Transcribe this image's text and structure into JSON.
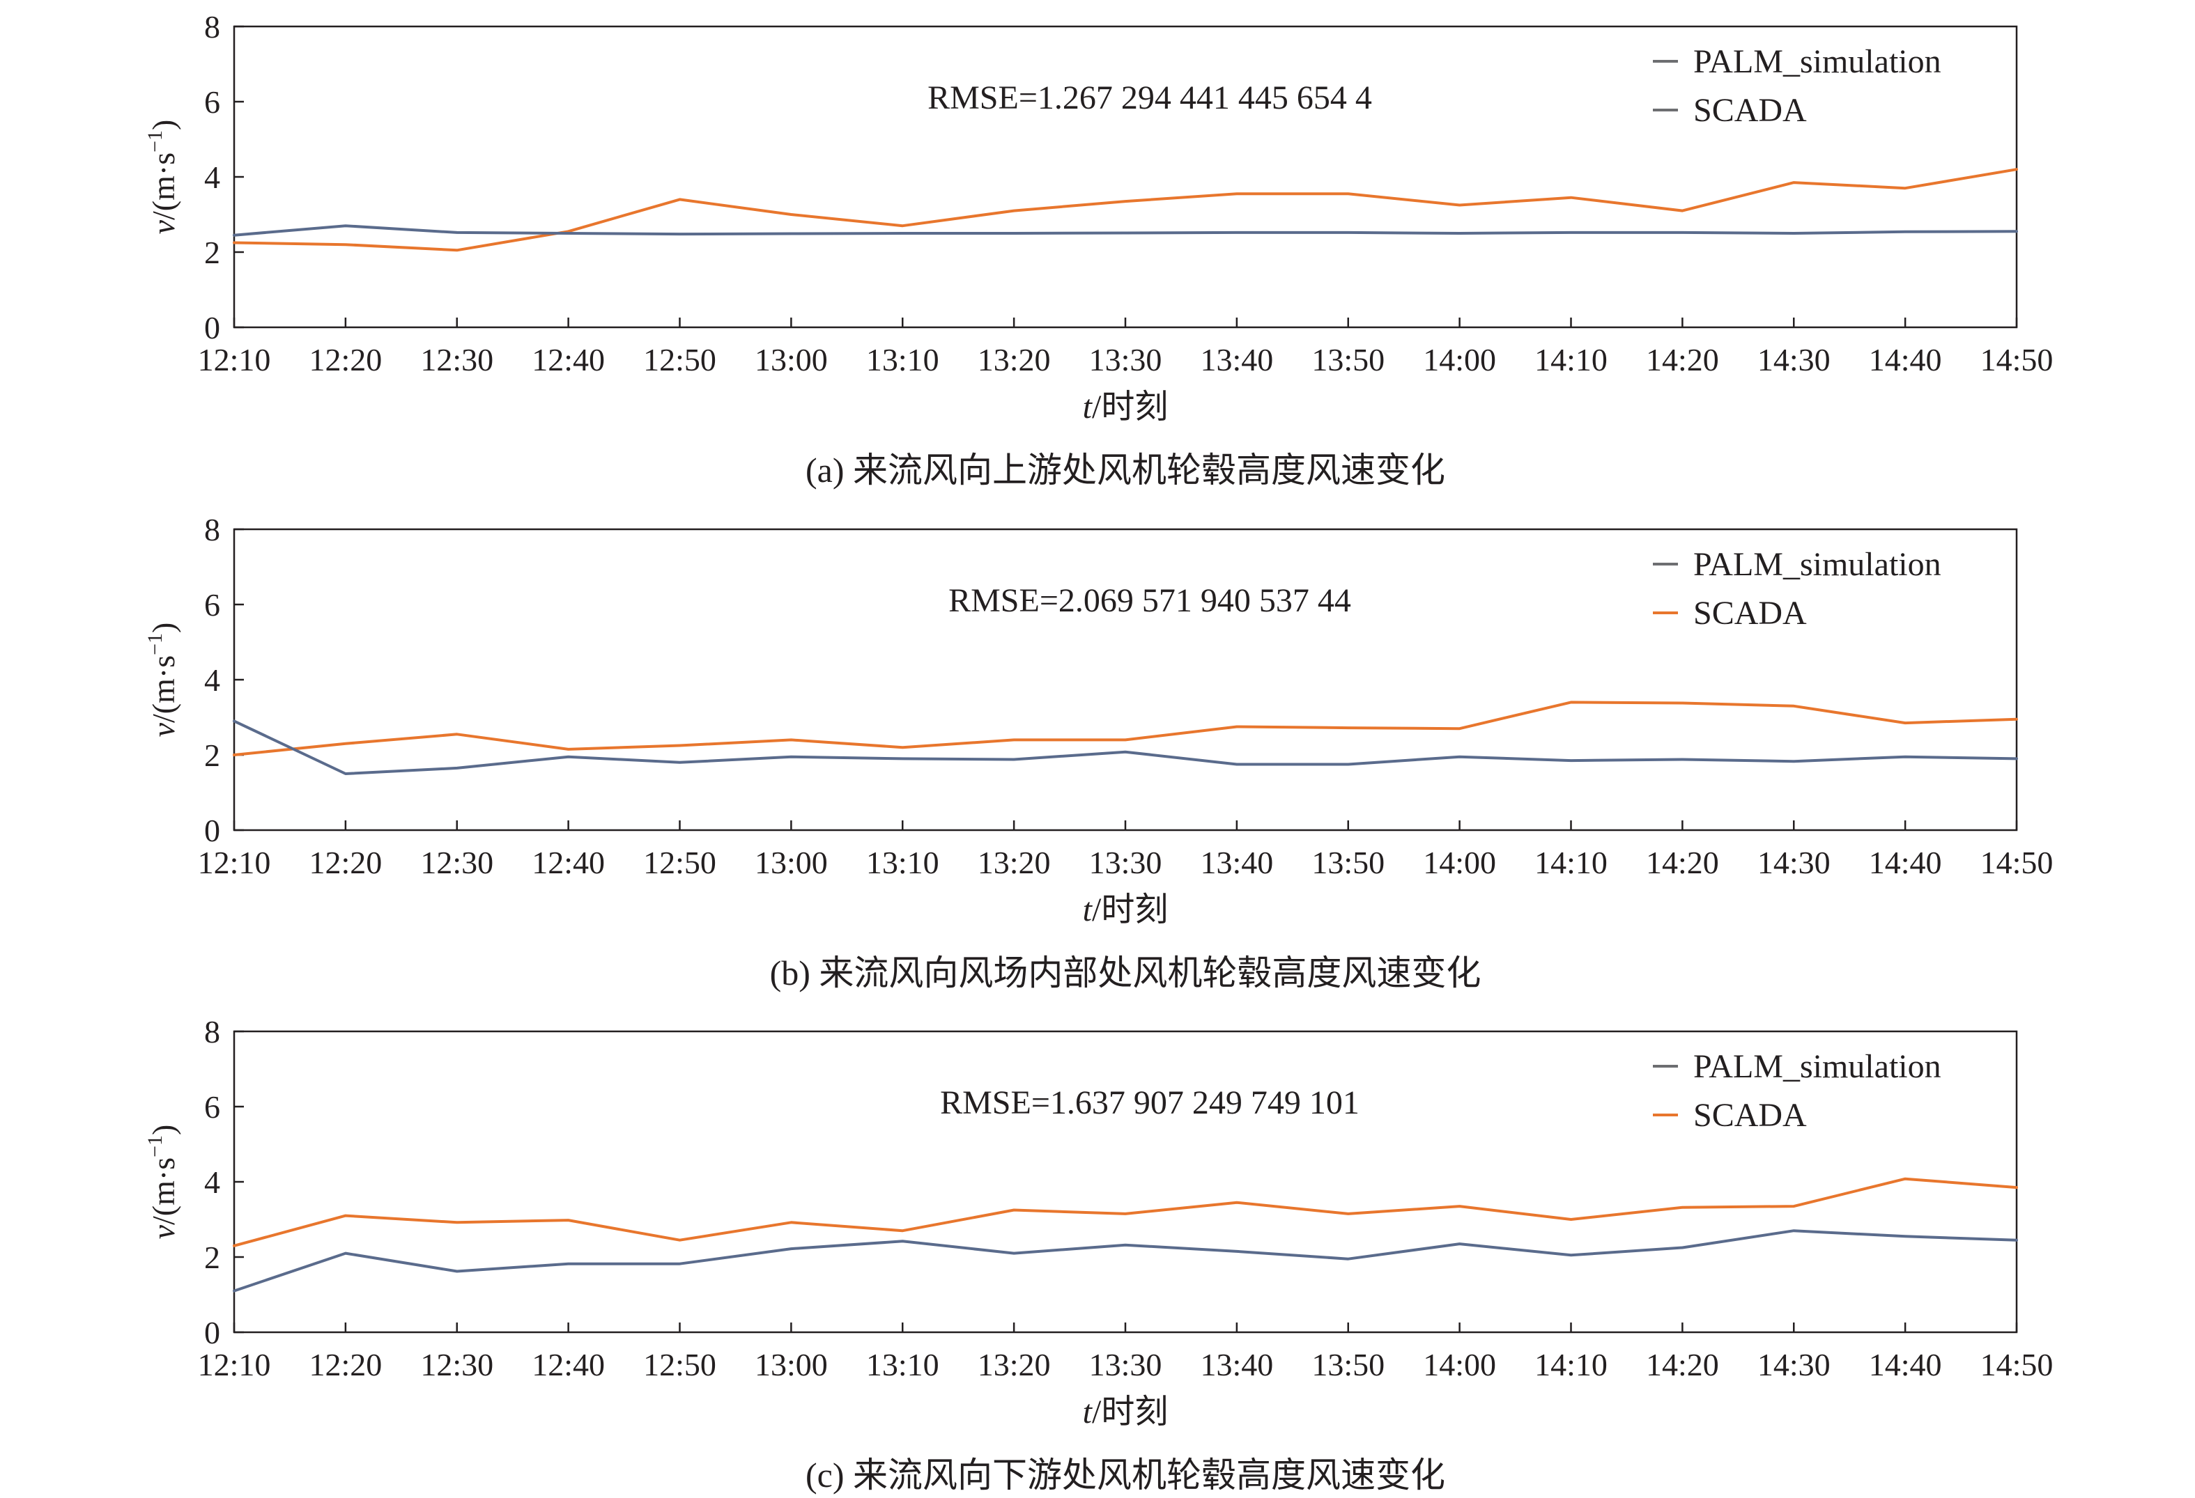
{
  "colors": {
    "palm": "#5a6b8c",
    "scada": "#e8762d",
    "legend_grey": "#6d6e71"
  },
  "chart_data": [
    {
      "type": "line",
      "panel": "a",
      "caption": "(a) 来流风向上游处风机轮毂高度风速变化",
      "annotation": "RMSE=1.267 294 441 445 654 4",
      "xlabel_italic": "t",
      "xlabel_rest": "/时刻",
      "ylabel_italic": "v",
      "ylabel_rest": "/(m·s",
      "ylabel_sup": "−1",
      "ylabel_close": ")",
      "ylim": [
        0,
        8
      ],
      "yticks": [
        "0",
        "2",
        "4",
        "6",
        "8"
      ],
      "categories": [
        "12:10",
        "12:20",
        "12:30",
        "12:40",
        "12:50",
        "13:00",
        "13:10",
        "13:20",
        "13:30",
        "13:40",
        "13:50",
        "14:00",
        "14:10",
        "14:20",
        "14:30",
        "14:40",
        "14:50"
      ],
      "legend_position": "top-right",
      "legend_marker_colors": [
        "#6d6e71",
        "#6d6e71"
      ],
      "series": [
        {
          "name": "PALM_simulation",
          "color": "#5a6b8c",
          "values": [
            2.45,
            2.7,
            2.52,
            2.5,
            2.48,
            2.49,
            2.5,
            2.5,
            2.51,
            2.52,
            2.52,
            2.5,
            2.52,
            2.52,
            2.5,
            2.54,
            2.55
          ]
        },
        {
          "name": "SCADA",
          "color": "#e8762d",
          "values": [
            2.25,
            2.2,
            2.05,
            2.55,
            3.4,
            3.0,
            2.7,
            3.1,
            3.35,
            3.55,
            3.55,
            3.25,
            3.45,
            3.1,
            3.85,
            3.7,
            4.2
          ]
        }
      ]
    },
    {
      "type": "line",
      "panel": "b",
      "caption": "(b) 来流风向风场内部处风机轮毂高度风速变化",
      "annotation": "RMSE=2.069 571 940 537 44",
      "xlabel_italic": "t",
      "xlabel_rest": "/时刻",
      "ylabel_italic": "v",
      "ylabel_rest": "/(m·s",
      "ylabel_sup": "−1",
      "ylabel_close": ")",
      "ylim": [
        0,
        8
      ],
      "yticks": [
        "0",
        "2",
        "4",
        "6",
        "8"
      ],
      "categories": [
        "12:10",
        "12:20",
        "12:30",
        "12:40",
        "12:50",
        "13:00",
        "13:10",
        "13:20",
        "13:30",
        "13:40",
        "13:50",
        "14:00",
        "14:10",
        "14:20",
        "14:30",
        "14:40",
        "14:50"
      ],
      "legend_position": "top-right",
      "legend_marker_colors": [
        "#6d6e71",
        "#e8762d"
      ],
      "series": [
        {
          "name": "PALM_simulation",
          "color": "#5a6b8c",
          "values": [
            2.9,
            1.5,
            1.65,
            1.95,
            1.8,
            1.95,
            1.9,
            1.88,
            2.08,
            1.75,
            1.75,
            1.95,
            1.85,
            1.88,
            1.83,
            1.95,
            1.9
          ]
        },
        {
          "name": "SCADA",
          "color": "#e8762d",
          "values": [
            2.0,
            2.3,
            2.55,
            2.15,
            2.25,
            2.4,
            2.2,
            2.4,
            2.4,
            2.75,
            2.72,
            2.7,
            3.4,
            3.38,
            3.3,
            2.85,
            2.95
          ]
        }
      ]
    },
    {
      "type": "line",
      "panel": "c",
      "caption": "(c) 来流风向下游处风机轮毂高度风速变化",
      "annotation": "RMSE=1.637 907 249 749 101",
      "xlabel_italic": "t",
      "xlabel_rest": "/时刻",
      "ylabel_italic": "v",
      "ylabel_rest": "/(m·s",
      "ylabel_sup": "−1",
      "ylabel_close": ")",
      "ylim": [
        0,
        8
      ],
      "yticks": [
        "0",
        "2",
        "4",
        "6",
        "8"
      ],
      "categories": [
        "12:10",
        "12:20",
        "12:30",
        "12:40",
        "12:50",
        "13:00",
        "13:10",
        "13:20",
        "13:30",
        "13:40",
        "13:50",
        "14:00",
        "14:10",
        "14:20",
        "14:30",
        "14:40",
        "14:50"
      ],
      "legend_position": "top-right",
      "legend_marker_colors": [
        "#6d6e71",
        "#e8762d"
      ],
      "series": [
        {
          "name": "PALM_simulation",
          "color": "#5a6b8c",
          "values": [
            1.1,
            2.1,
            1.62,
            1.82,
            1.82,
            2.22,
            2.42,
            2.1,
            2.32,
            2.15,
            1.95,
            2.35,
            2.05,
            2.25,
            2.7,
            2.55,
            2.45
          ]
        },
        {
          "name": "SCADA",
          "color": "#e8762d",
          "values": [
            2.3,
            3.1,
            2.92,
            2.98,
            2.45,
            2.92,
            2.7,
            3.25,
            3.15,
            3.45,
            3.15,
            3.35,
            3.0,
            3.32,
            3.35,
            4.08,
            3.85
          ]
        }
      ]
    }
  ]
}
